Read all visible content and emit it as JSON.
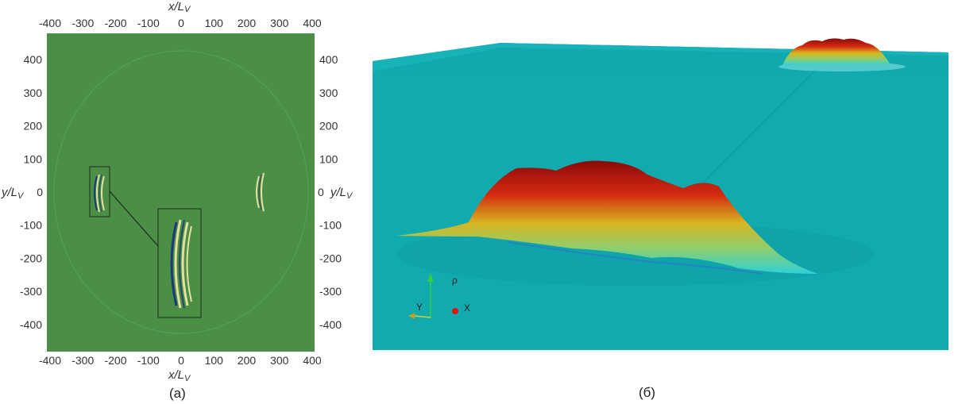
{
  "panel_a": {
    "caption": "(а)",
    "x_label": "x/L",
    "x_label_sub": "V",
    "y_label": "y/L",
    "y_label_sub": "V",
    "x_ticks": [
      "-400",
      "-300",
      "-200",
      "-100",
      "0",
      "100",
      "200",
      "300",
      "400"
    ],
    "y_ticks": [
      "400",
      "300",
      "200",
      "100",
      "0",
      "-100",
      "-200",
      "-300",
      "-400"
    ],
    "background_color": "#4a8f45"
  },
  "panel_b": {
    "caption": "(б)",
    "axes_triad": {
      "up": "ρ",
      "left": "Y",
      "dot": "X"
    },
    "background_color": "#11aaaf"
  }
}
